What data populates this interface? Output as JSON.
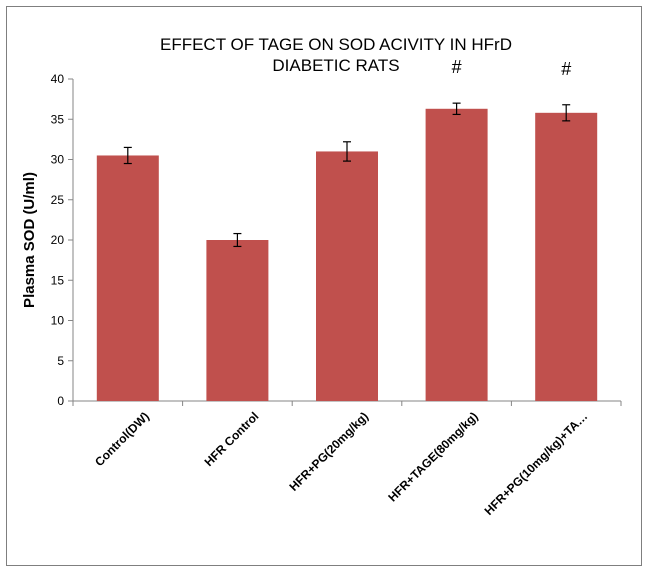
{
  "chart_data": {
    "type": "bar",
    "title_lines": [
      "EFFECT OF TAGE ON SOD ACIVITY IN HFrD",
      "DIABETIC RATS"
    ],
    "xlabel": "",
    "ylabel": "Plasma SOD (U/ml)",
    "ylim": [
      0,
      40
    ],
    "yticks": [
      0,
      5,
      10,
      15,
      20,
      25,
      30,
      35,
      40
    ],
    "categories": [
      "Control(DW)",
      "HFR Control",
      "HFR+PG(20mg/kg)",
      "HFR+TAGE(80mg/kg)",
      "HFR+PG(10mg/kg)+TA…"
    ],
    "values": [
      30.5,
      20.0,
      31.0,
      36.3,
      35.8
    ],
    "errors": [
      1.0,
      0.8,
      1.2,
      0.7,
      1.0
    ],
    "annotations": [
      "",
      "",
      "",
      "#",
      "#"
    ],
    "bar_color": "#c0504d",
    "grid": false,
    "legend": "none"
  }
}
